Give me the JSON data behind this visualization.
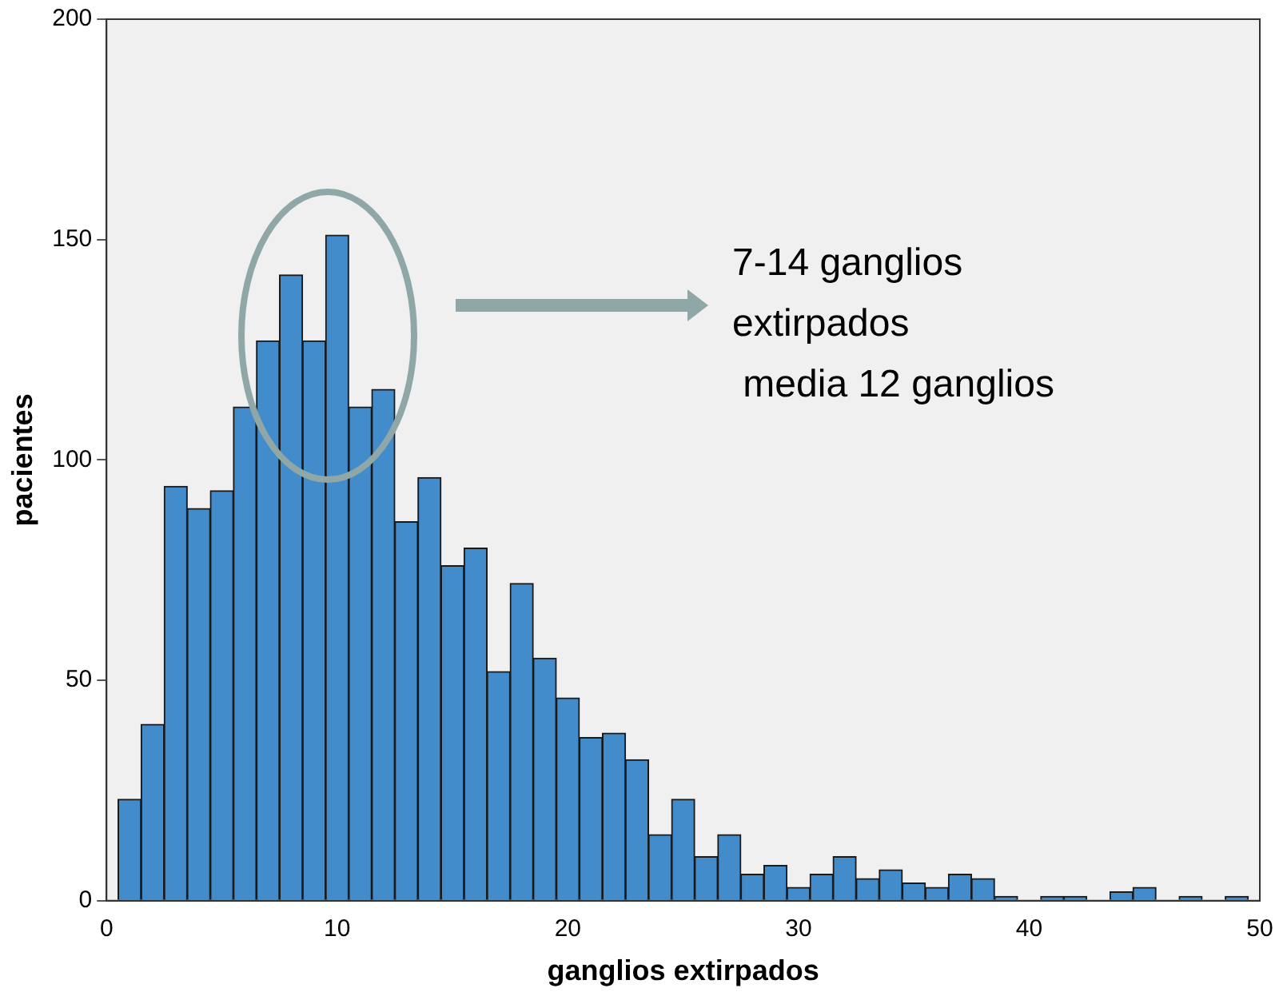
{
  "chart_data": {
    "type": "histogram",
    "xlabel": "ganglios extirpados",
    "ylabel": "pacientes",
    "bins": [
      0.5,
      1.5,
      2.5,
      3.5,
      4.5,
      5.5,
      6.5,
      7.5,
      8.5,
      9.5,
      10.5,
      11.5,
      12.5,
      13.5,
      14.5,
      15.5,
      16.5,
      17.5,
      18.5,
      19.5,
      20.5,
      21.5,
      22.5,
      23.5,
      24.5,
      25.5,
      26.5,
      27.5,
      28.5,
      29.5,
      30.5,
      31.5,
      32.5,
      33.5,
      34.5,
      35.5,
      36.5,
      37.5,
      38.5,
      39.5,
      40.5,
      41.5,
      42.5,
      43.5,
      44.5,
      45.5,
      46.5,
      47.5,
      48.5,
      49.5
    ],
    "values": [
      23,
      40,
      94,
      89,
      93,
      112,
      127,
      142,
      127,
      151,
      112,
      116,
      86,
      96,
      76,
      80,
      52,
      72,
      55,
      46,
      37,
      38,
      32,
      15,
      23,
      10,
      15,
      6,
      8,
      3,
      6,
      10,
      5,
      7,
      4,
      3,
      6,
      5,
      1,
      0,
      1,
      1,
      0,
      2,
      3,
      0,
      1,
      0,
      1
    ],
    "color": "#438ccb",
    "xlim": [
      0,
      50
    ],
    "xticks": [
      0,
      10,
      20,
      30,
      40,
      50
    ],
    "ylim": [
      0,
      200
    ],
    "yticks": [
      0,
      50,
      100,
      150,
      200
    ],
    "grid": false,
    "legend": false,
    "annotations": [
      "7-14 ganglios\nextirpados\n media 12 ganglios"
    ]
  }
}
